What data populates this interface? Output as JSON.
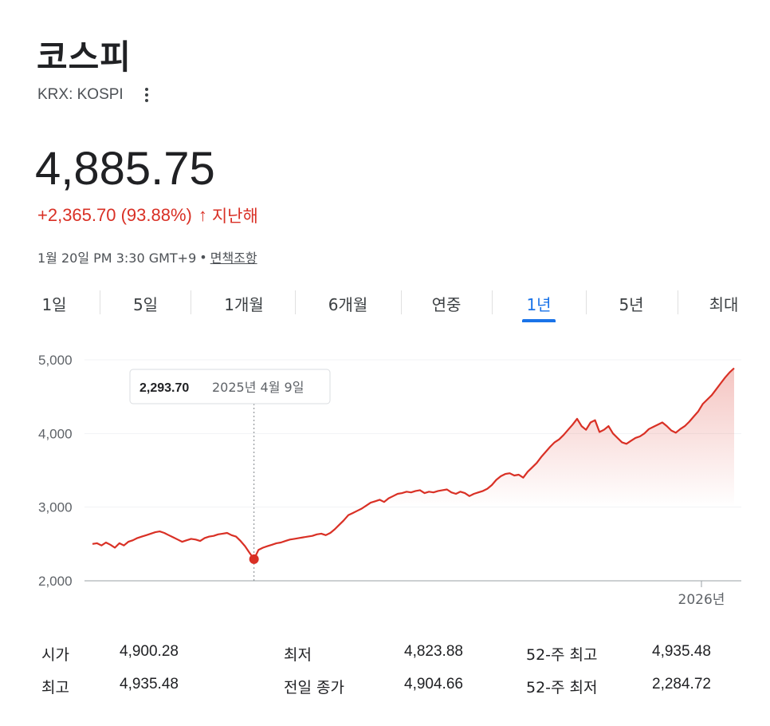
{
  "header": {
    "title": "코스피",
    "ticker": "KRX: KOSPI",
    "price": "4,885.75",
    "change": "+2,365.70 (93.88%)",
    "change_arrow": "↑",
    "change_period": "지난해",
    "timestamp": "1월 20일 PM 3:30 GMT+9",
    "disclaimer": "면책조항",
    "change_color": "#d93025"
  },
  "tabs": [
    {
      "label": "1일"
    },
    {
      "label": "5일"
    },
    {
      "label": "1개월"
    },
    {
      "label": "6개월"
    },
    {
      "label": "연중"
    },
    {
      "label": "1년",
      "active": true
    },
    {
      "label": "5년"
    },
    {
      "label": "최대"
    }
  ],
  "tooltip": {
    "value": "2,293.70",
    "date": "2025년 4월 9일"
  },
  "chart_data": {
    "type": "area",
    "y_ticks": [
      "5,000",
      "4,000",
      "3,000",
      "2,000"
    ],
    "ylim": [
      2000,
      5000
    ],
    "x_ticks": [
      "2026년"
    ],
    "line_color": "#d93025",
    "series": [
      {
        "values": [
          2500,
          2510,
          2480,
          2520,
          2490,
          2450,
          2510,
          2480,
          2530,
          2550,
          2580,
          2600,
          2620,
          2640,
          2660,
          2670,
          2650,
          2620,
          2590,
          2560,
          2530,
          2550,
          2570,
          2560,
          2540,
          2580,
          2600,
          2610,
          2630,
          2640,
          2650,
          2620,
          2600,
          2540,
          2470,
          2380,
          2293.7,
          2420,
          2450,
          2470,
          2490,
          2510,
          2520,
          2540,
          2560,
          2570,
          2580,
          2590,
          2600,
          2610,
          2630,
          2640,
          2620,
          2650,
          2700,
          2760,
          2820,
          2890,
          2920,
          2950,
          2980,
          3020,
          3060,
          3080,
          3100,
          3070,
          3120,
          3150,
          3180,
          3190,
          3210,
          3200,
          3220,
          3230,
          3190,
          3210,
          3200,
          3220,
          3230,
          3240,
          3200,
          3180,
          3210,
          3190,
          3150,
          3180,
          3200,
          3220,
          3250,
          3300,
          3370,
          3420,
          3450,
          3460,
          3430,
          3440,
          3400,
          3480,
          3540,
          3600,
          3680,
          3750,
          3820,
          3880,
          3920,
          3980,
          4050,
          4120,
          4200,
          4100,
          4050,
          4150,
          4180,
          4020,
          4050,
          4100,
          4000,
          3940,
          3880,
          3860,
          3900,
          3940,
          3960,
          4000,
          4060,
          4090,
          4120,
          4150,
          4100,
          4040,
          4010,
          4060,
          4100,
          4160,
          4230,
          4300,
          4400,
          4460,
          4520,
          4600,
          4680,
          4760,
          4830,
          4885.75
        ]
      }
    ],
    "tooltip_point": {
      "value": 2293.7,
      "date": "2025년 4월 9일"
    }
  },
  "stats": [
    {
      "label": "시가",
      "value": "4,900.28"
    },
    {
      "label": "최고",
      "value": "4,935.48"
    },
    {
      "label": "최저",
      "value": "4,823.88"
    },
    {
      "label": "전일 종가",
      "value": "4,904.66"
    },
    {
      "label": "52-주 최고",
      "value": "4,935.48"
    },
    {
      "label": "52-주 최저",
      "value": "2,284.72"
    }
  ]
}
